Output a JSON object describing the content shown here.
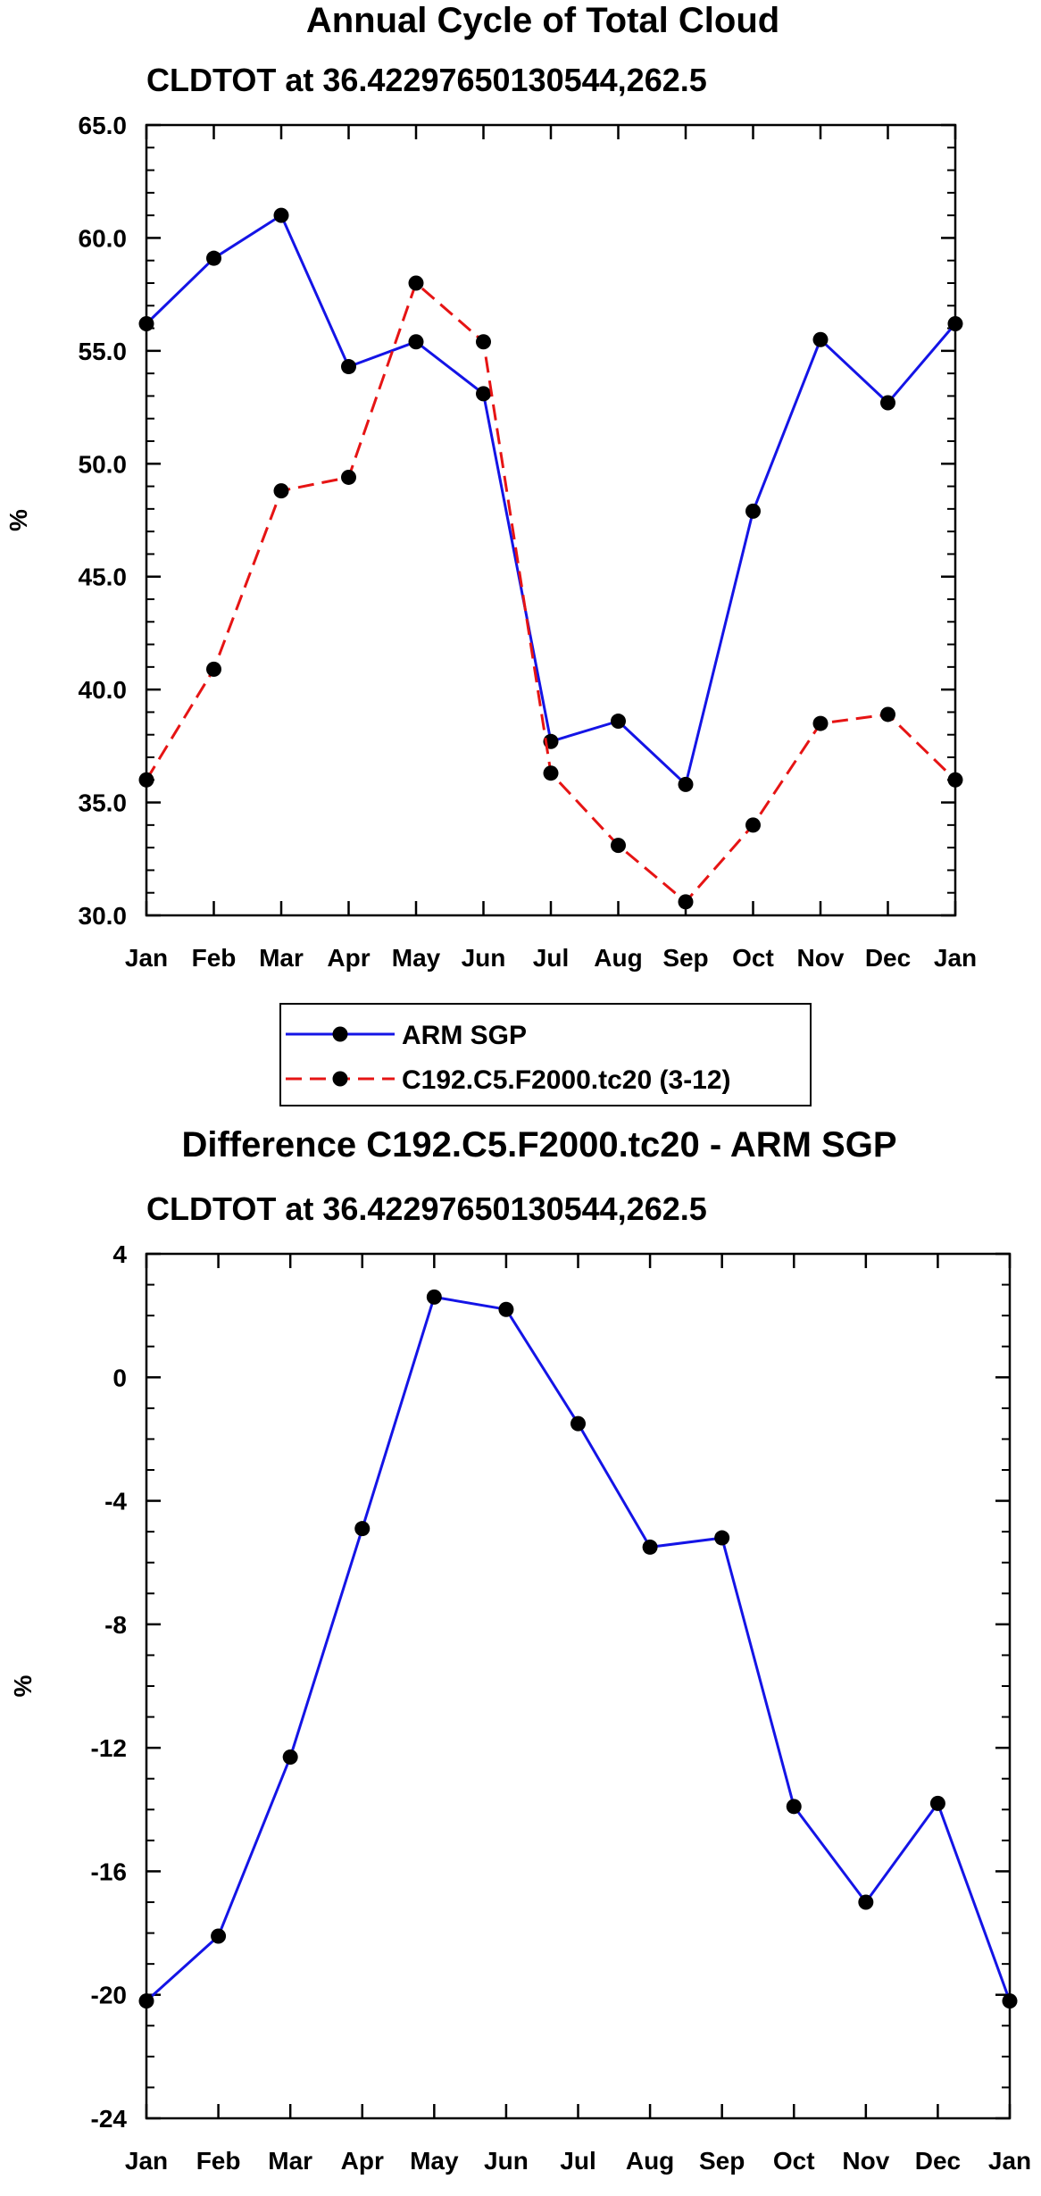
{
  "chart_data": [
    {
      "type": "line",
      "title": "Annual Cycle of Total Cloud",
      "subtitle": "CLDTOT at 36.42297650130544,262.5",
      "xlabel": "",
      "ylabel": "%",
      "categories": [
        "Jan",
        "Feb",
        "Mar",
        "Apr",
        "May",
        "Jun",
        "Jul",
        "Aug",
        "Sep",
        "Oct",
        "Nov",
        "Dec",
        "Jan"
      ],
      "ylim": [
        30.0,
        65.0
      ],
      "yticks": [
        "30.0",
        "35.0",
        "40.0",
        "45.0",
        "50.0",
        "55.0",
        "60.0",
        "65.0"
      ],
      "grid": false,
      "legend_position": "bottom",
      "series": [
        {
          "name": "ARM SGP",
          "color": "#1414e6",
          "dash": "solid",
          "values": [
            56.2,
            59.1,
            61.0,
            54.3,
            55.4,
            53.1,
            37.7,
            38.6,
            35.8,
            47.9,
            55.5,
            52.7,
            56.2
          ]
        },
        {
          "name": "C192.C5.F2000.tc20 (3-12)",
          "color": "#e61414",
          "dash": "dashed",
          "values": [
            36.0,
            40.9,
            48.8,
            49.4,
            58.0,
            55.4,
            36.3,
            33.1,
            30.6,
            34.0,
            38.5,
            38.9,
            36.0
          ]
        }
      ]
    },
    {
      "type": "line",
      "title": "Difference C192.C5.F2000.tc20 - ARM SGP",
      "subtitle": "CLDTOT at 36.42297650130544,262.5",
      "xlabel": "",
      "ylabel": "%",
      "categories": [
        "Jan",
        "Feb",
        "Mar",
        "Apr",
        "May",
        "Jun",
        "Jul",
        "Aug",
        "Sep",
        "Oct",
        "Nov",
        "Dec",
        "Jan"
      ],
      "ylim": [
        -24,
        4
      ],
      "yticks": [
        "-24",
        "-20",
        "-16",
        "-12",
        "-8",
        "-4",
        "0",
        "4"
      ],
      "grid": false,
      "series": [
        {
          "name": "Difference",
          "color": "#1414e6",
          "dash": "solid",
          "values": [
            -20.2,
            -18.1,
            -12.3,
            -4.9,
            2.6,
            2.2,
            -1.5,
            -5.5,
            -5.2,
            -13.9,
            -17.0,
            -13.8,
            -20.2
          ]
        }
      ]
    }
  ]
}
